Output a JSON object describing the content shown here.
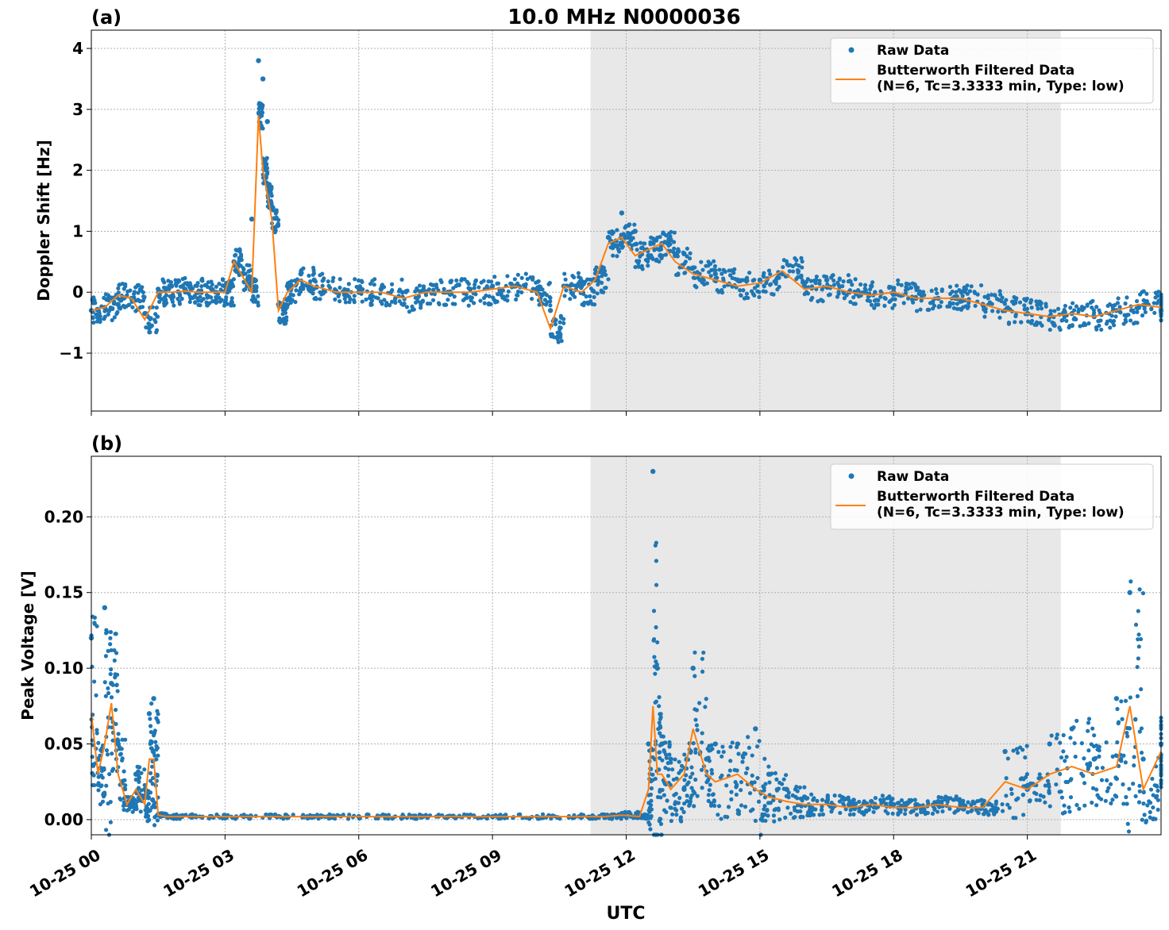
{
  "figure": {
    "title": "10.0 MHz N0000036",
    "xlabel": "UTC",
    "night_span_hours": [
      11.2,
      21.75
    ],
    "shade_color": "#e8e8e8",
    "raw_color": "#1f77b4",
    "filtered_color": "#ff7f0e",
    "x_ticks": [
      {
        "value": 0,
        "label": "10-25 00"
      },
      {
        "value": 3,
        "label": "10-25 03"
      },
      {
        "value": 6,
        "label": "10-25 06"
      },
      {
        "value": 9,
        "label": "10-25 09"
      },
      {
        "value": 12,
        "label": "10-25 12"
      },
      {
        "value": 15,
        "label": "10-25 15"
      },
      {
        "value": 18,
        "label": "10-25 18"
      },
      {
        "value": 21,
        "label": "10-25 21"
      }
    ]
  },
  "chart_data": [
    {
      "type": "scatter",
      "panel_label": "(a)",
      "ylabel": "Doppler Shift [Hz]",
      "xlim": [
        0,
        24
      ],
      "ylim": [
        -1.95,
        4.3
      ],
      "grid": true,
      "legend_position": "top-right",
      "y_ticks": [
        {
          "value": -1,
          "label": "−1"
        },
        {
          "value": 0,
          "label": "0"
        },
        {
          "value": 1,
          "label": "1"
        },
        {
          "value": 2,
          "label": "2"
        },
        {
          "value": 3,
          "label": "3"
        },
        {
          "value": 4,
          "label": "4"
        }
      ],
      "series": [
        {
          "name": "Raw Data",
          "kind": "points",
          "x": [
            0.0,
            0.3,
            0.6,
            0.9,
            1.2,
            1.5,
            1.8,
            2.1,
            2.4,
            2.7,
            3.0,
            3.2,
            3.4,
            3.6,
            3.75,
            3.85,
            3.95,
            4.05,
            4.2,
            4.4,
            4.7,
            5.0,
            5.5,
            6.0,
            6.5,
            7.0,
            7.5,
            8.0,
            8.5,
            9.0,
            9.5,
            10.0,
            10.3,
            10.6,
            11.0,
            11.3,
            11.6,
            11.9,
            12.2,
            12.5,
            12.8,
            13.1,
            13.5,
            14.0,
            14.5,
            15.0,
            15.5,
            16.0,
            16.5,
            17.0,
            17.5,
            18.0,
            18.5,
            19.0,
            19.5,
            20.0,
            20.5,
            21.0,
            21.5,
            22.0,
            22.5,
            23.0,
            23.5,
            24.0
          ],
          "y": [
            -0.3,
            -0.25,
            -0.2,
            -0.1,
            -0.35,
            0.05,
            0.1,
            0.05,
            0.0,
            0.05,
            0.1,
            0.5,
            0.3,
            1.2,
            3.8,
            3.5,
            2.8,
            1.4,
            -0.2,
            0.1,
            0.3,
            0.2,
            0.0,
            0.0,
            0.05,
            -0.2,
            0.0,
            0.0,
            0.05,
            0.1,
            0.1,
            0.0,
            -0.3,
            0.1,
            0.1,
            0.2,
            0.9,
            1.3,
            1.0,
            0.6,
            0.8,
            0.6,
            0.4,
            0.3,
            0.2,
            0.2,
            0.3,
            0.1,
            0.2,
            0.0,
            0.1,
            0.0,
            -0.1,
            -0.1,
            -0.15,
            -0.2,
            -0.3,
            -0.35,
            -0.4,
            -0.35,
            -0.4,
            -0.3,
            -0.25,
            -0.3
          ]
        },
        {
          "name": "Butterworth Filtered Data\n(N=6, Tc=3.3333 min, Type: low)",
          "kind": "line",
          "x": [
            0.0,
            0.3,
            0.6,
            0.9,
            1.2,
            1.5,
            1.8,
            2.1,
            2.4,
            2.7,
            3.0,
            3.2,
            3.4,
            3.6,
            3.75,
            3.85,
            3.95,
            4.05,
            4.2,
            4.4,
            4.7,
            5.0,
            5.5,
            6.0,
            6.5,
            7.0,
            7.5,
            8.0,
            8.5,
            9.0,
            9.5,
            10.0,
            10.3,
            10.6,
            11.0,
            11.3,
            11.6,
            11.9,
            12.2,
            12.5,
            12.8,
            13.1,
            13.5,
            14.0,
            14.5,
            15.0,
            15.5,
            16.0,
            16.5,
            17.0,
            17.5,
            18.0,
            18.5,
            19.0,
            19.5,
            20.0,
            20.5,
            21.0,
            21.5,
            22.0,
            22.5,
            23.0,
            23.5,
            24.0
          ],
          "y": [
            -0.3,
            -0.25,
            -0.05,
            -0.1,
            -0.45,
            0.0,
            0.0,
            0.02,
            0.0,
            0.0,
            0.0,
            0.5,
            0.25,
            0.0,
            2.9,
            2.0,
            1.6,
            1.2,
            -0.3,
            0.0,
            0.2,
            0.1,
            0.0,
            0.0,
            0.0,
            -0.1,
            0.0,
            0.0,
            0.0,
            0.05,
            0.1,
            0.0,
            -0.6,
            0.1,
            0.0,
            0.2,
            0.8,
            0.9,
            0.6,
            0.7,
            0.8,
            0.5,
            0.3,
            0.2,
            0.1,
            0.15,
            0.35,
            0.05,
            0.1,
            0.0,
            -0.05,
            0.0,
            -0.1,
            -0.1,
            -0.1,
            -0.2,
            -0.3,
            -0.35,
            -0.4,
            -0.35,
            -0.4,
            -0.3,
            -0.2,
            -0.25
          ]
        }
      ]
    },
    {
      "type": "scatter",
      "panel_label": "(b)",
      "ylabel": "Peak Voltage [V]",
      "xlim": [
        0,
        24
      ],
      "ylim": [
        -0.01,
        0.24
      ],
      "grid": true,
      "legend_position": "top-right",
      "y_ticks": [
        {
          "value": 0.0,
          "label": "0.00"
        },
        {
          "value": 0.05,
          "label": "0.05"
        },
        {
          "value": 0.1,
          "label": "0.10"
        },
        {
          "value": 0.15,
          "label": "0.15"
        },
        {
          "value": 0.2,
          "label": "0.20"
        }
      ],
      "series": [
        {
          "name": "Raw Data",
          "kind": "points",
          "x": [
            0.0,
            0.15,
            0.3,
            0.45,
            0.6,
            0.8,
            1.0,
            1.2,
            1.3,
            1.4,
            1.5,
            1.7,
            2.0,
            3.0,
            4.0,
            5.0,
            6.0,
            7.0,
            8.0,
            9.0,
            10.0,
            11.0,
            11.5,
            11.9,
            12.3,
            12.5,
            12.6,
            12.7,
            12.8,
            13.0,
            13.3,
            13.5,
            13.8,
            14.0,
            14.5,
            14.9,
            15.2,
            15.6,
            16.0,
            16.5,
            17.0,
            17.5,
            18.0,
            18.5,
            19.0,
            19.5,
            20.0,
            20.5,
            21.0,
            21.5,
            22.0,
            22.5,
            23.0,
            23.3,
            23.6,
            24.0
          ],
          "y": [
            0.12,
            0.04,
            0.14,
            0.09,
            0.05,
            0.01,
            0.03,
            0.02,
            0.07,
            0.08,
            0.003,
            0.002,
            0.002,
            0.002,
            0.002,
            0.002,
            0.002,
            0.002,
            0.002,
            0.002,
            0.002,
            0.002,
            0.003,
            0.004,
            0.003,
            0.05,
            0.23,
            0.1,
            0.05,
            0.04,
            0.02,
            0.1,
            0.04,
            0.05,
            0.05,
            0.06,
            0.03,
            0.02,
            0.015,
            0.012,
            0.01,
            0.012,
            0.01,
            0.01,
            0.012,
            0.01,
            0.01,
            0.045,
            0.02,
            0.05,
            0.06,
            0.04,
            0.08,
            0.15,
            0.04,
            0.05
          ]
        },
        {
          "name": "Butterworth Filtered Data\n(N=6, Tc=3.3333 min, Type: low)",
          "kind": "line",
          "x": [
            0.0,
            0.15,
            0.3,
            0.45,
            0.6,
            0.8,
            1.0,
            1.2,
            1.3,
            1.4,
            1.5,
            1.7,
            2.0,
            3.0,
            4.0,
            5.0,
            6.0,
            7.0,
            8.0,
            9.0,
            10.0,
            11.0,
            11.5,
            11.9,
            12.3,
            12.5,
            12.6,
            12.7,
            12.8,
            13.0,
            13.3,
            13.5,
            13.8,
            14.0,
            14.5,
            14.9,
            15.2,
            15.6,
            16.0,
            16.5,
            17.0,
            17.5,
            18.0,
            18.5,
            19.0,
            19.5,
            20.0,
            20.5,
            21.0,
            21.5,
            22.0,
            22.5,
            23.0,
            23.3,
            23.6,
            24.0
          ],
          "y": [
            0.07,
            0.03,
            0.05,
            0.077,
            0.03,
            0.01,
            0.02,
            0.01,
            0.04,
            0.04,
            0.003,
            0.002,
            0.002,
            0.002,
            0.002,
            0.002,
            0.002,
            0.002,
            0.002,
            0.002,
            0.002,
            0.002,
            0.002,
            0.003,
            0.002,
            0.02,
            0.075,
            0.03,
            0.03,
            0.02,
            0.03,
            0.06,
            0.03,
            0.025,
            0.03,
            0.02,
            0.015,
            0.012,
            0.01,
            0.01,
            0.008,
            0.01,
            0.008,
            0.008,
            0.01,
            0.008,
            0.008,
            0.025,
            0.02,
            0.03,
            0.035,
            0.03,
            0.035,
            0.075,
            0.02,
            0.045
          ]
        }
      ]
    }
  ]
}
